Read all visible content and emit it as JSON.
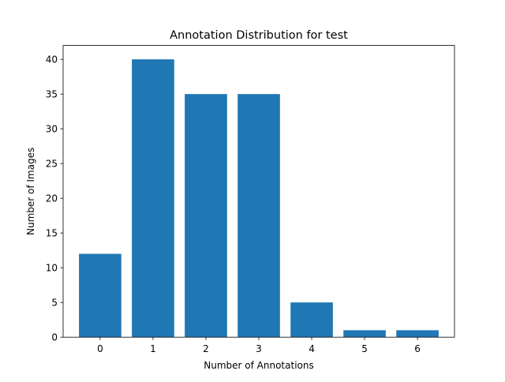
{
  "chart_data": {
    "type": "bar",
    "title": "Annotation Distribution for test",
    "xlabel": "Number of Annotations",
    "ylabel": "Number of Images",
    "categories": [
      "0",
      "1",
      "2",
      "3",
      "4",
      "5",
      "6"
    ],
    "values": [
      12,
      40,
      35,
      35,
      5,
      1,
      1
    ],
    "ylim": [
      0,
      42
    ],
    "yticks": [
      0,
      5,
      10,
      15,
      20,
      25,
      30,
      35,
      40
    ],
    "bar_color": "#1f77b4",
    "grid": false,
    "legend": "none"
  }
}
